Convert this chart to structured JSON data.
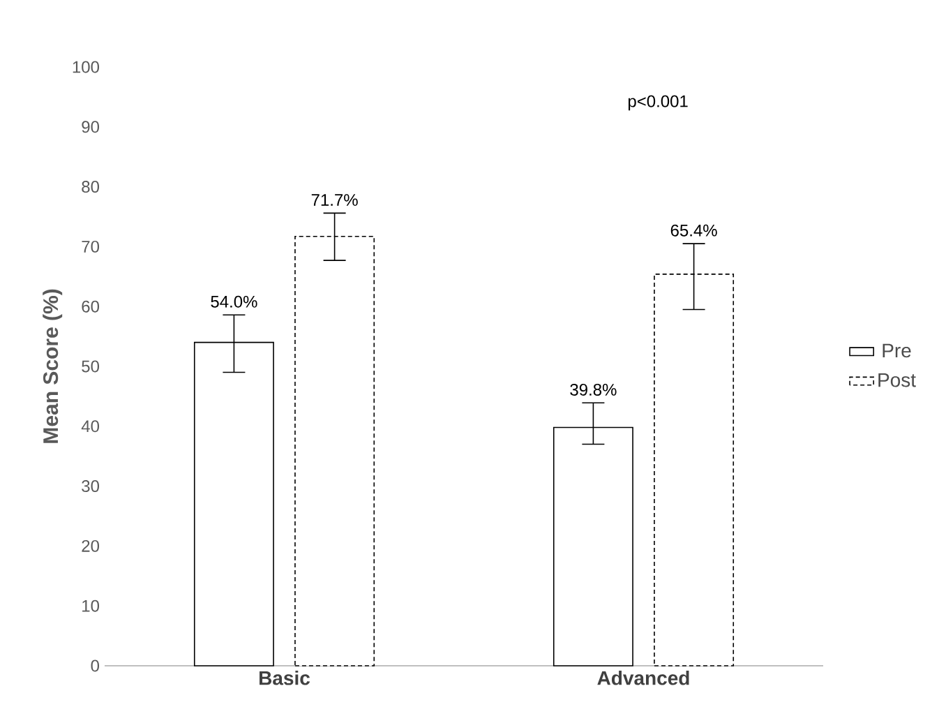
{
  "chart_data": {
    "type": "bar",
    "ylabel": "Mean Score (%)",
    "categories": [
      "Basic",
      "Advanced"
    ],
    "series": [
      {
        "name": "Pre",
        "color": "#000000",
        "line_style": "solid",
        "values": [
          54.0,
          39.8
        ],
        "value_labels": [
          "54.0%",
          "39.8%"
        ],
        "errors": [
          [
            49.0,
            58.6
          ],
          [
            37.0,
            43.9
          ]
        ]
      },
      {
        "name": "Post",
        "color": "#000000",
        "line_style": "dashed",
        "values": [
          71.7,
          65.4
        ],
        "value_labels": [
          "71.7%",
          "65.4%"
        ],
        "errors": [
          [
            67.7,
            75.6
          ],
          [
            59.5,
            70.5
          ]
        ]
      }
    ],
    "ylim": [
      0,
      100
    ],
    "yticks": [
      0,
      10,
      20,
      30,
      40,
      50,
      60,
      70,
      80,
      90,
      100
    ],
    "grid": false,
    "legend": "right",
    "annotations": [
      "p<0.001"
    ]
  }
}
